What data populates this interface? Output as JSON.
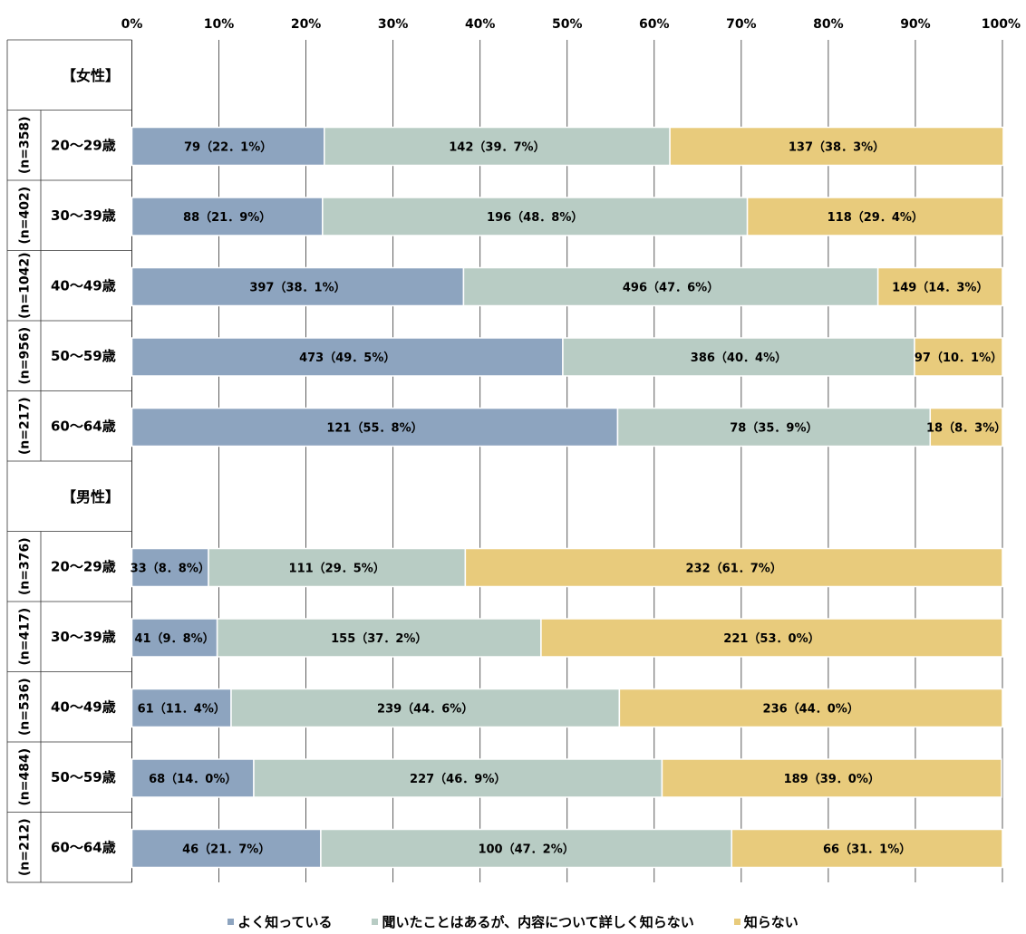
{
  "chart_data": {
    "type": "bar",
    "orientation": "horizontal",
    "stacked": true,
    "xlim": [
      0,
      100
    ],
    "x_ticks": [
      "0%",
      "10%",
      "20%",
      "30%",
      "40%",
      "50%",
      "60%",
      "70%",
      "80%",
      "90%",
      "100%"
    ],
    "legend_position": "bottom",
    "series": [
      {
        "name": "よく知っている",
        "color": "#8da4bf"
      },
      {
        "name": "聞いたことはあるが、内容について詳しく知らない",
        "color": "#b8ccc4"
      },
      {
        "name": "知らない",
        "color": "#e8cb7c"
      }
    ],
    "groups": [
      {
        "header": "【女性】",
        "rows": [
          {
            "n": "(n=358)",
            "category": "20～29歳",
            "values": [
              22.1,
              39.7,
              38.3
            ],
            "labels": [
              "79（22．1%）",
              "142（39．7%）",
              "137（38．3%）"
            ]
          },
          {
            "n": "(n=402)",
            "category": "30～39歳",
            "values": [
              21.9,
              48.8,
              29.4
            ],
            "labels": [
              "88（21．9%）",
              "196（48．8%）",
              "118（29．4%）"
            ]
          },
          {
            "n": "(n=1042)",
            "category": "40～49歳",
            "values": [
              38.1,
              47.6,
              14.3
            ],
            "labels": [
              "397（38．1%）",
              "496（47．6%）",
              "149（14．3%）"
            ]
          },
          {
            "n": "(n=956)",
            "category": "50～59歳",
            "values": [
              49.5,
              40.4,
              10.1
            ],
            "labels": [
              "473（49．5%）",
              "386（40．4%）",
              "97（10．1%）"
            ]
          },
          {
            "n": "(n=217)",
            "category": "60～64歳",
            "values": [
              55.8,
              35.9,
              8.3
            ],
            "labels": [
              "121（55．8%）",
              "78（35．9%）",
              "18（8．3%）"
            ]
          }
        ]
      },
      {
        "header": "【男性】",
        "rows": [
          {
            "n": "(n=376)",
            "category": "20～29歳",
            "values": [
              8.8,
              29.5,
              61.7
            ],
            "labels": [
              "33（8．8%）",
              "111（29．5%）",
              "232（61．7%）"
            ]
          },
          {
            "n": "(n=417)",
            "category": "30～39歳",
            "values": [
              9.8,
              37.2,
              53.0
            ],
            "labels": [
              "41（9．8%）",
              "155（37．2%）",
              "221（53．0%）"
            ]
          },
          {
            "n": "(n=536)",
            "category": "40～49歳",
            "values": [
              11.4,
              44.6,
              44.0
            ],
            "labels": [
              "61（11．4%）",
              "239（44．6%）",
              "236（44．0%）"
            ]
          },
          {
            "n": "(n=484)",
            "category": "50～59歳",
            "values": [
              14.0,
              46.9,
              39.0
            ],
            "labels": [
              "68（14．0%）",
              "227（46．9%）",
              "189（39．0%）"
            ]
          },
          {
            "n": "(n=212)",
            "category": "60～64歳",
            "values": [
              21.7,
              47.2,
              31.1
            ],
            "labels": [
              "46（21．7%）",
              "100（47．2%）",
              "66（31．1%）"
            ]
          }
        ]
      }
    ]
  }
}
